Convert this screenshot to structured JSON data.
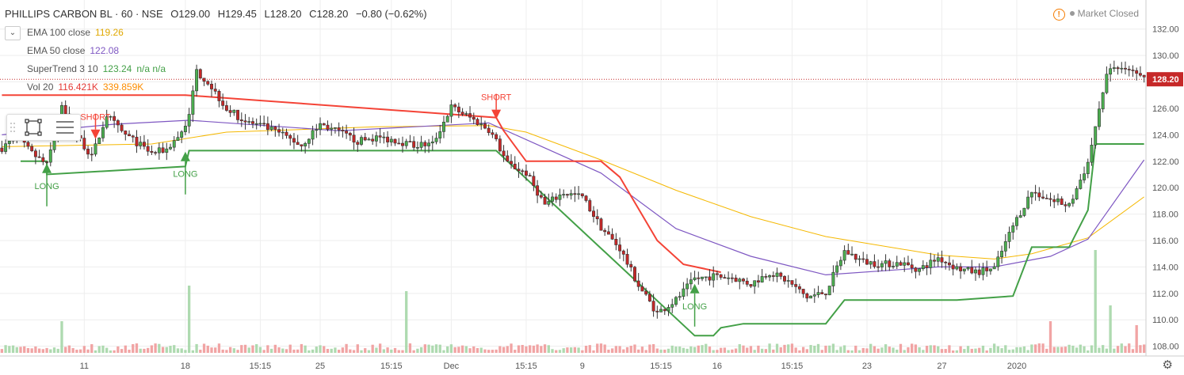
{
  "header": {
    "symbol": "PHILLIPS CARBON BL · 60 · NSE",
    "open": "O129.00",
    "high": "H129.45",
    "low": "L128.20",
    "close": "C128.20",
    "change": "−0.80 (−0.62%)"
  },
  "legend": {
    "ema100": {
      "label": "EMA 100 close",
      "value": "119.26",
      "color": "#f5b800"
    },
    "ema50": {
      "label": "EMA 50 close",
      "value": "122.08",
      "color": "#7e57c2"
    },
    "supertrend": {
      "label": "SuperTrend 3 10",
      "value": "123.24",
      "extra": "n/a n/a",
      "color": "#4caf50"
    },
    "volume": {
      "label": "Vol 20",
      "value": "116.421K",
      "value2": "339.859K",
      "color": "#f44336"
    }
  },
  "status": {
    "market": "Market Closed",
    "warn_icon": "!"
  },
  "last_price": "128.20",
  "colors": {
    "up": "#4caf50",
    "down": "#c62828",
    "up_wick": "#333",
    "st_up": "#43a047",
    "st_down": "#f44336",
    "price_line": "#c62828",
    "grid": "#eeeeee",
    "axis_text": "#555"
  },
  "chart_data": {
    "type": "candlestick",
    "y_ticks": [
      "108.00",
      "110.00",
      "112.00",
      "114.00",
      "116.00",
      "118.00",
      "120.00",
      "122.00",
      "124.00",
      "126.00",
      "128.00",
      "130.00",
      "132.00"
    ],
    "ylim": [
      107.5,
      133
    ],
    "x_ticks": [
      "11",
      "18",
      "15:15",
      "25",
      "15:15",
      "Dec",
      "15:15",
      "9",
      "15:15",
      "16",
      "15:15",
      "23",
      "27",
      "2020"
    ],
    "signals": [
      {
        "label": "LONG",
        "bar": 12,
        "price": 121.7,
        "kind": "long"
      },
      {
        "label": "SHORT",
        "bar": 25,
        "price": 123.8,
        "kind": "short"
      },
      {
        "label": "LONG",
        "bar": 49,
        "price": 122.6,
        "kind": "long"
      },
      {
        "label": "SHORT",
        "bar": 132,
        "price": 125.3,
        "kind": "short"
      },
      {
        "label": "LONG",
        "bar": 185,
        "price": 112.6,
        "kind": "long"
      }
    ],
    "close_path": [
      [
        0,
        123.0
      ],
      [
        4,
        123.8
      ],
      [
        8,
        122.6
      ],
      [
        12,
        121.7
      ],
      [
        16,
        126.0
      ],
      [
        20,
        124.0
      ],
      [
        24,
        122.3
      ],
      [
        28,
        125.5
      ],
      [
        32,
        124.2
      ],
      [
        36,
        123.4
      ],
      [
        40,
        122.6
      ],
      [
        44,
        122.9
      ],
      [
        48,
        124.2
      ],
      [
        50,
        125.4
      ],
      [
        52,
        128.8
      ],
      [
        55,
        128.0
      ],
      [
        60,
        126.0
      ],
      [
        65,
        125.0
      ],
      [
        70,
        124.6
      ],
      [
        75,
        124.0
      ],
      [
        80,
        123.2
      ],
      [
        85,
        124.8
      ],
      [
        90,
        124.2
      ],
      [
        95,
        123.5
      ],
      [
        100,
        123.8
      ],
      [
        105,
        123.6
      ],
      [
        110,
        123.2
      ],
      [
        115,
        123.3
      ],
      [
        120,
        126.1
      ],
      [
        125,
        125.3
      ],
      [
        130,
        124.4
      ],
      [
        132,
        123.5
      ],
      [
        135,
        121.8
      ],
      [
        140,
        121.1
      ],
      [
        145,
        118.7
      ],
      [
        150,
        119.6
      ],
      [
        155,
        119.3
      ],
      [
        160,
        117.0
      ],
      [
        165,
        115.4
      ],
      [
        170,
        112.6
      ],
      [
        175,
        110.5
      ],
      [
        180,
        111.5
      ],
      [
        185,
        113.1
      ],
      [
        190,
        113.3
      ],
      [
        195,
        113.2
      ],
      [
        200,
        112.7
      ],
      [
        205,
        113.6
      ],
      [
        210,
        112.9
      ],
      [
        215,
        111.7
      ],
      [
        220,
        112.1
      ],
      [
        225,
        115.2
      ],
      [
        230,
        114.4
      ],
      [
        235,
        114.2
      ],
      [
        240,
        114.3
      ],
      [
        245,
        113.8
      ],
      [
        250,
        114.7
      ],
      [
        255,
        113.9
      ],
      [
        260,
        113.6
      ],
      [
        265,
        113.9
      ],
      [
        270,
        117.1
      ],
      [
        275,
        119.7
      ],
      [
        280,
        119.1
      ],
      [
        285,
        118.6
      ],
      [
        290,
        121.9
      ],
      [
        295,
        128.7
      ],
      [
        300,
        129.2
      ],
      [
        305,
        128.2
      ]
    ],
    "ema100": [
      [
        0,
        123.1
      ],
      [
        40,
        123.3
      ],
      [
        60,
        124.2
      ],
      [
        100,
        124.6
      ],
      [
        130,
        124.7
      ],
      [
        140,
        124.2
      ],
      [
        160,
        122.1
      ],
      [
        180,
        119.8
      ],
      [
        200,
        117.8
      ],
      [
        220,
        116.3
      ],
      [
        250,
        114.9
      ],
      [
        265,
        114.6
      ],
      [
        275,
        115.0
      ],
      [
        290,
        116.2
      ],
      [
        305,
        119.3
      ]
    ],
    "ema50": [
      [
        0,
        124.0
      ],
      [
        30,
        124.8
      ],
      [
        50,
        125.1
      ],
      [
        90,
        124.3
      ],
      [
        130,
        124.9
      ],
      [
        145,
        123.0
      ],
      [
        160,
        121.1
      ],
      [
        180,
        116.9
      ],
      [
        200,
        114.8
      ],
      [
        220,
        113.4
      ],
      [
        250,
        114.0
      ],
      [
        265,
        114.0
      ],
      [
        280,
        114.8
      ],
      [
        290,
        116.1
      ],
      [
        305,
        122.1
      ]
    ],
    "supertrend": {
      "down": [
        [
          0,
          127.0
        ],
        [
          12,
          127.0
        ],
        [
          12,
          127.0
        ],
        [
          49,
          127.0
        ],
        [
          132,
          125.3
        ],
        [
          134,
          124.3
        ],
        [
          140,
          122.0
        ],
        [
          160,
          122.0
        ],
        [
          165,
          120.8
        ],
        [
          175,
          116.0
        ],
        [
          182,
          114.2
        ],
        [
          192,
          113.6
        ]
      ],
      "up": [
        [
          5,
          122.0
        ],
        [
          12,
          122.0
        ],
        [
          12,
          121.0
        ],
        [
          49,
          121.6
        ],
        [
          50,
          122.8
        ],
        [
          110,
          122.8
        ],
        [
          132,
          122.8
        ],
        [
          185,
          108.8
        ],
        [
          190,
          108.8
        ],
        [
          192,
          109.4
        ],
        [
          198,
          109.7
        ],
        [
          220,
          109.7
        ],
        [
          225,
          111.5
        ],
        [
          255,
          111.5
        ],
        [
          270,
          111.8
        ],
        [
          275,
          115.5
        ],
        [
          285,
          115.5
        ],
        [
          290,
          118.3
        ],
        [
          292,
          123.3
        ],
        [
          305,
          123.3
        ]
      ]
    },
    "volume_spikes": [
      [
        16,
        40
      ],
      [
        50,
        85
      ],
      [
        108,
        78
      ],
      [
        280,
        40
      ],
      [
        292,
        130
      ],
      [
        296,
        60
      ],
      [
        303,
        35
      ]
    ]
  }
}
